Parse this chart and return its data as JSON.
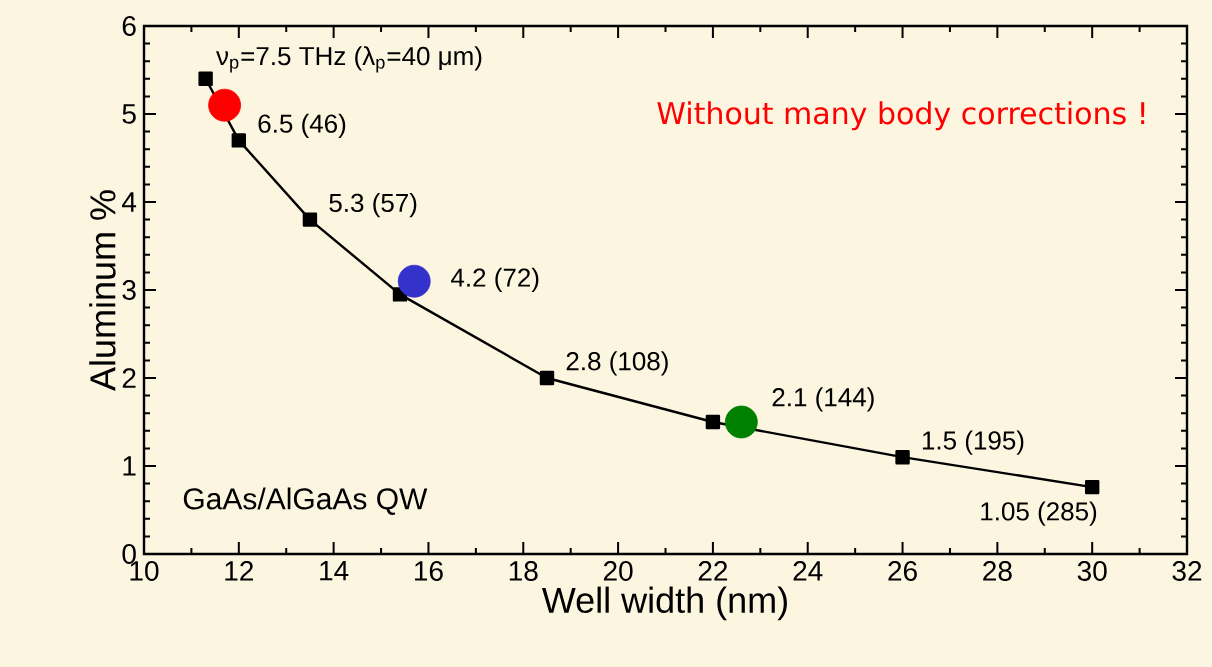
{
  "chart_data": {
    "type": "line",
    "xlabel": "Well width (nm)",
    "ylabel": "Aluminum %",
    "xlim": [
      10,
      32
    ],
    "ylim": [
      0,
      6
    ],
    "xticks": [
      10,
      12,
      14,
      16,
      18,
      20,
      22,
      24,
      26,
      28,
      30,
      32
    ],
    "yticks": [
      0,
      1,
      2,
      3,
      4,
      5,
      6
    ],
    "series": [
      {
        "color": "#000000",
        "marker": "square",
        "line_style": "solid",
        "x": [
          11.3,
          12,
          13.5,
          15.4,
          18.5,
          22,
          26,
          30
        ],
        "values": [
          5.4,
          4.7,
          3.8,
          2.95,
          2.0,
          1.5,
          1.1,
          0.76
        ]
      },
      {
        "type": "scatter",
        "marker": "circle",
        "x": [
          11.7,
          15.7,
          22.6
        ],
        "values": [
          5.1,
          3.1,
          1.5
        ],
        "colors": [
          "#ff0000",
          "#3333cc",
          "#008000"
        ]
      }
    ],
    "annotations": [
      {
        "text": "ν$_{p}$=7.5 THz (λ$_{p}$=40 μm)",
        "x": 11.3,
        "y": 5.4
      },
      {
        "text": "6.5 (46)",
        "x": 12,
        "y": 4.7
      },
      {
        "text": "5.3 (57)",
        "x": 13.5,
        "y": 3.8
      },
      {
        "text": "4.2 (72)",
        "x": 15.4,
        "y": 2.95
      },
      {
        "text": "2.8 (108)",
        "x": 18.5,
        "y": 2.0
      },
      {
        "text": "2.1 (144)",
        "x": 22,
        "y": 1.5
      },
      {
        "text": "1.5 (195)",
        "x": 26,
        "y": 1.1
      },
      {
        "text": "1.05 (285)",
        "x": 30,
        "y": 0.76
      },
      "Without many body corrections !",
      "GaAs/AlGaAs QW"
    ]
  }
}
